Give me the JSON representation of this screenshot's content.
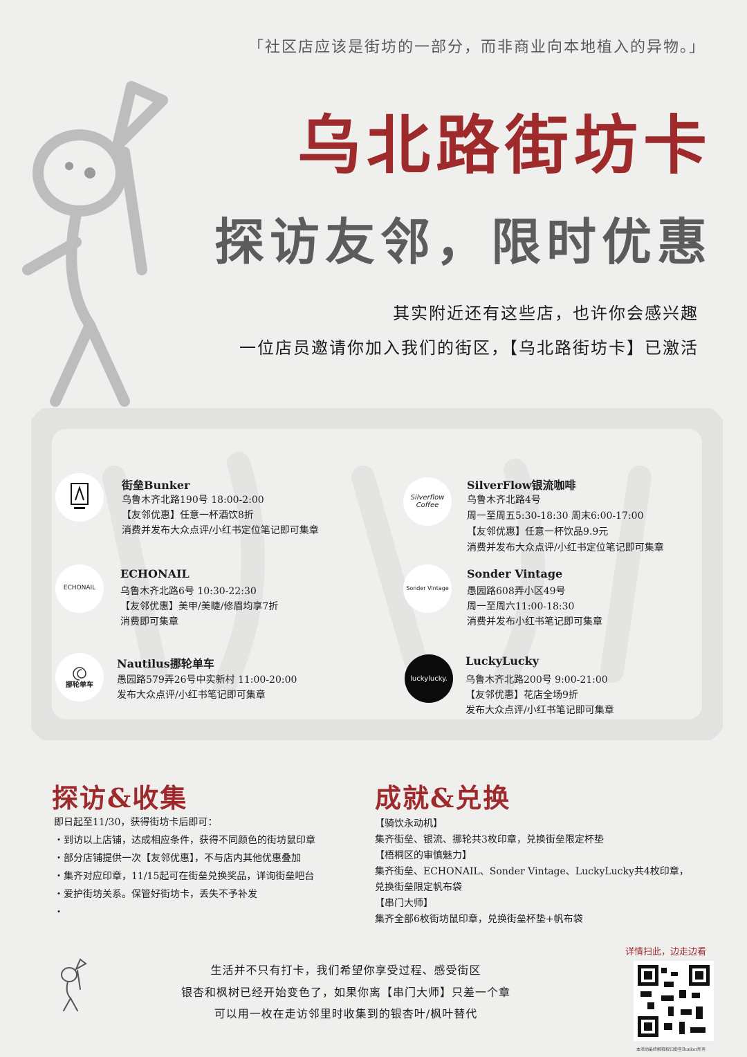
{
  "colors": {
    "accent": "#9e2a2b",
    "title_gray": "#5c5c5c",
    "background": "#efefee"
  },
  "quote": "「社区店应该是街坊的一部分，而非商业向本地植入的异物。」",
  "title": "乌北路街坊卡",
  "subtitle": "探访友邻，限时优惠",
  "intro": {
    "line1": "其实附近还有这些店，也许你会感兴趣",
    "line2": "一位店员邀请你加入我们的街区，【乌北路街坊卡】已激活"
  },
  "stores": [
    {
      "name": "街垒Bunker",
      "logo_icon": "bunker-logo-icon",
      "lines": [
        "乌鲁木齐北路190号 18:00-2:00",
        "【友邻优惠】任意一杯酒饮8折",
        "消费并发布大众点评/小红书定位笔记即可集章"
      ]
    },
    {
      "name": "SilverFlow银流咖啡",
      "logo_icon": "silverflow-logo-icon",
      "logo_text": "Silverflow Coffee",
      "lines": [
        "乌鲁木齐北路4号",
        "周一至周五5:30-18:30 周末6:00-17:00",
        "【友邻优惠】任意一杯饮品9.9元",
        "消费并发布大众点评/小红书定位笔记即可集章"
      ]
    },
    {
      "name": "ECHONAIL",
      "logo_icon": "echonail-logo-icon",
      "logo_text": "ECHONAIL",
      "lines": [
        "乌鲁木齐北路6号 10:30-22:30",
        "【友邻优惠】美甲/美睫/修眉均享7折",
        "消费即可集章"
      ]
    },
    {
      "name": "Sonder Vintage",
      "logo_icon": "sonder-logo-icon",
      "logo_text": "Sonder Vintage",
      "lines": [
        "愚园路608弄小区49号",
        "周一至周六11:00-18:30",
        "消费并发布小红书笔记即可集章"
      ]
    },
    {
      "name": "Nautilus挪轮单车",
      "logo_icon": "nautilus-logo-icon",
      "logo_text": "挪轮单车",
      "lines": [
        "愚园路579弄26号中实新村 11:00-20:00",
        "发布大众点评/小红书笔记即可集章"
      ]
    },
    {
      "name": "LuckyLucky",
      "logo_icon": "luckylucky-logo-icon",
      "logo_text": "luckylucky.",
      "lines": [
        "乌鲁木齐北路200号 9:00-21:00",
        "【友邻优惠】花店全场9折",
        "发布大众点评/小红书笔记即可集章"
      ]
    }
  ],
  "collect": {
    "title": "探访&收集",
    "intro": "即日起至11/30，获得街坊卡后即可：",
    "items": [
      "・到访以上店铺，达成相应条件，获得不同颜色的街坊鼠印章",
      "・部分店铺提供一次【友邻优惠】，不与店内其他优惠叠加",
      "・集齐对应印章，11/15起可在街垒兑换奖品，详询街垒吧台",
      "・爱护街坊关系。保管好街坊卡，丢失不予补发",
      "・"
    ]
  },
  "redeem": {
    "title": "成就&兑换",
    "lines": [
      "【骑饮永动机】",
      "集齐街垒、银流、挪轮共3枚印章，兑换街垒限定杯垫",
      "【梧桐区的审慎魅力】",
      "集齐街垒、ECHONAIL、Sonder Vintage、LuckyLucky共4枚印章，",
      "兑换街垒限定帆布袋",
      "【串门大师】",
      "集齐全部6枚街坊鼠印章，兑换街垒杯垫+帆布袋"
    ]
  },
  "footer": {
    "lines": [
      "生活并不只有打卡，我们希望你享受过程、感受街区",
      "银杏和枫树已经开始变色了，如果你离【串门大师】只差一个章",
      "可以用一枚在走访邻里时收集到的银杏叶/枫叶替代"
    ],
    "qr_label": "详情扫此，边走边看",
    "fine_print": "本活动最终解释权归街垒Bunker所有"
  }
}
